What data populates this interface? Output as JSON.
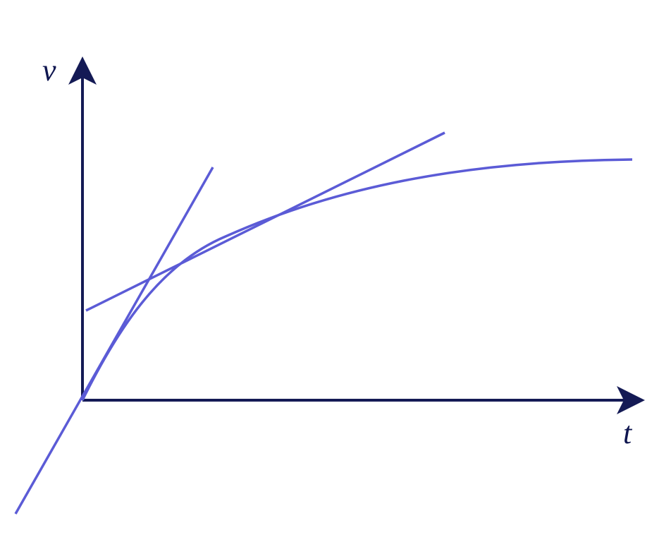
{
  "axes": {
    "y_label": "v",
    "x_label": "t"
  }
}
